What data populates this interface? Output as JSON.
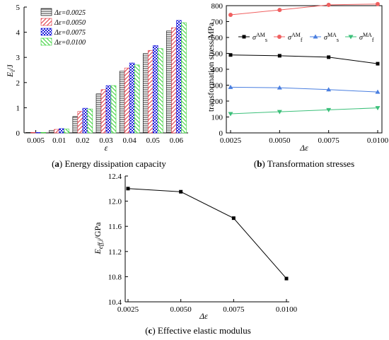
{
  "captions": [
    {
      "prefix": "(",
      "letter": "a",
      "suffix": ") Energy dissipation capacity"
    },
    {
      "prefix": "(",
      "letter": "b",
      "suffix": ") Transformation stresses"
    },
    {
      "prefix": "(",
      "letter": "c",
      "suffix": ") Effective elastic modulus"
    }
  ],
  "chart_data": [
    {
      "id": "a",
      "type": "bar",
      "xlabel": "ε",
      "ylabel_main": "E",
      "ylabel_sub": "i",
      "ylabel_unit": "/J",
      "categories": [
        "0.005",
        "0.01",
        "0.02",
        "0.03",
        "0.04",
        "0.05",
        "0.06"
      ],
      "ylim": [
        0,
        5
      ],
      "yticks": [
        "0",
        "1",
        "2",
        "3",
        "4",
        "5"
      ],
      "series": [
        {
          "name": "Δε=0.0025",
          "color": "#000000",
          "pattern": "hlines",
          "values": [
            0.02,
            0.1,
            0.65,
            1.55,
            2.45,
            3.15,
            4.05
          ]
        },
        {
          "name": "Δε=0.0050",
          "color": "#e0303a",
          "pattern": "diag",
          "values": [
            0.02,
            0.14,
            0.85,
            1.72,
            2.58,
            3.28,
            4.18
          ]
        },
        {
          "name": "Δε=0.0075",
          "color": "#1a1adc",
          "pattern": "check",
          "values": [
            0.02,
            0.17,
            0.98,
            1.88,
            2.78,
            3.47,
            4.47
          ]
        },
        {
          "name": "Δε=0.0100",
          "color": "#2fd02f",
          "pattern": "diag2",
          "values": [
            0.02,
            0.15,
            0.95,
            1.88,
            2.7,
            3.35,
            4.38
          ]
        }
      ]
    },
    {
      "id": "b",
      "type": "line",
      "xlabel": "Δε",
      "ylabel": "transformation stress/MPa",
      "x": [
        "0.0025",
        "0.0050",
        "0.0075",
        "0.0100"
      ],
      "ylim": [
        0,
        800
      ],
      "yticks": [
        "0",
        "100",
        "200",
        "300",
        "400",
        "500",
        "600",
        "700",
        "800"
      ],
      "series": [
        {
          "name_sym": "σ",
          "name_sup": "AM",
          "name_sub": "s",
          "color": "#000000",
          "marker": "square",
          "values": [
            490,
            485,
            476,
            435
          ]
        },
        {
          "name_sym": "σ",
          "name_sup": "AM",
          "name_sub": "f",
          "color": "#f06060",
          "marker": "circle",
          "values": [
            742,
            773,
            805,
            810
          ]
        },
        {
          "name_sym": "σ",
          "name_sup": "MA",
          "name_sub": "s",
          "color": "#4a7fe0",
          "marker": "triangle-up",
          "values": [
            287,
            284,
            272,
            257
          ]
        },
        {
          "name_sym": "σ",
          "name_sup": "MA",
          "name_sub": "f",
          "color": "#3cc07a",
          "marker": "triangle-down",
          "values": [
            120,
            133,
            145,
            157
          ]
        }
      ]
    },
    {
      "id": "c",
      "type": "line",
      "xlabel": "Δε",
      "ylabel_main": "E",
      "ylabel_sub": "eff,i",
      "ylabel_unit": "/GPa",
      "x": [
        "0.0025",
        "0.0050",
        "0.0075",
        "0.0100"
      ],
      "ylim": [
        10.4,
        12.4
      ],
      "yticks": [
        "10.4",
        "10.8",
        "11.2",
        "11.6",
        "12.0",
        "12.4"
      ],
      "series": [
        {
          "color": "#000000",
          "marker": "square",
          "values": [
            12.2,
            12.15,
            11.73,
            10.77
          ]
        }
      ]
    }
  ]
}
